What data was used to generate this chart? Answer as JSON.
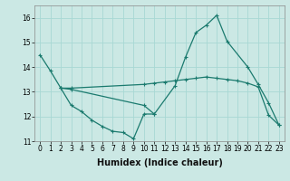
{
  "xlabel": "Humidex (Indice chaleur)",
  "ylabel": "",
  "bg_color": "#cbe8e4",
  "grid_color": "#a8d8d4",
  "line_color": "#1a7a6e",
  "xlim": [
    -0.5,
    23.5
  ],
  "ylim": [
    11.0,
    16.5
  ],
  "yticks": [
    11,
    12,
    13,
    14,
    15,
    16
  ],
  "xticks": [
    0,
    1,
    2,
    3,
    4,
    5,
    6,
    7,
    8,
    9,
    10,
    11,
    12,
    13,
    14,
    15,
    16,
    17,
    18,
    19,
    20,
    21,
    22,
    23
  ],
  "line1_x": [
    0,
    1,
    2,
    3,
    10,
    11,
    13,
    14,
    15,
    16,
    17,
    18,
    20,
    21,
    22,
    23
  ],
  "line1_y": [
    14.5,
    13.85,
    13.15,
    13.1,
    12.45,
    12.1,
    13.25,
    14.4,
    15.4,
    15.7,
    16.1,
    15.05,
    14.0,
    13.3,
    12.55,
    11.65
  ],
  "line2_x": [
    2,
    3,
    10,
    11,
    12,
    13,
    14,
    15,
    16,
    17,
    18,
    19,
    20,
    21,
    22,
    23
  ],
  "line2_y": [
    13.15,
    13.15,
    13.3,
    13.35,
    13.4,
    13.45,
    13.5,
    13.55,
    13.6,
    13.55,
    13.5,
    13.45,
    13.35,
    13.2,
    12.05,
    11.65
  ],
  "line3_x": [
    2,
    3,
    4,
    5,
    6,
    7,
    8,
    9,
    10,
    11
  ],
  "line3_y": [
    13.15,
    12.45,
    12.2,
    11.85,
    11.6,
    11.4,
    11.35,
    11.1,
    12.1,
    12.1
  ],
  "tick_fontsize": 5.5,
  "xlabel_fontsize": 7,
  "lw": 0.9,
  "ms": 3.5
}
